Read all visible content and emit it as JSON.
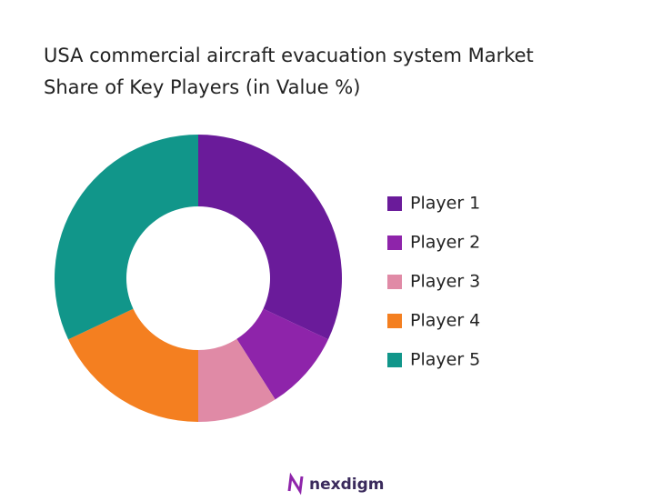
{
  "chart_data": {
    "type": "donut",
    "title": [
      "USA commercial aircraft evacuation system Market",
      "Share of Key Players (in Value %)"
    ],
    "categories": [
      "Player 1",
      "Player 2",
      "Player 3",
      "Player 4",
      "Player 5"
    ],
    "values": [
      32,
      9,
      9,
      18,
      32
    ],
    "colors": [
      "#6a1b9a",
      "#8e24aa",
      "#e08aa6",
      "#f47f20",
      "#11968a"
    ],
    "legend": "right"
  },
  "brand": "nexdigm"
}
